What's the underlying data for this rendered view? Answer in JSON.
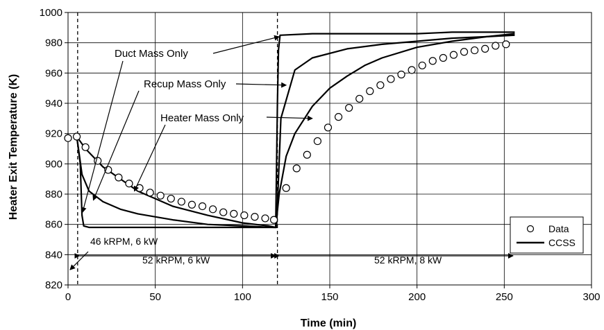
{
  "chart_data": {
    "type": "scatter",
    "title": "",
    "xlabel": "Time (min)",
    "ylabel": "Heater Exit Temperature (K)",
    "xlim": [
      0,
      300
    ],
    "ylim": [
      820,
      1000
    ],
    "xticks": [
      0,
      50,
      100,
      150,
      200,
      250,
      300
    ],
    "yticks": [
      820,
      840,
      860,
      880,
      900,
      920,
      940,
      960,
      980,
      1000
    ],
    "xtick_labels": [
      "0",
      "50",
      "100",
      "150",
      "200",
      "250",
      "300"
    ],
    "ytick_labels": [
      "820",
      "840",
      "860",
      "880",
      "900",
      "920",
      "940",
      "960",
      "980",
      "1000"
    ],
    "grid": true,
    "legend": {
      "position": "bottom-right",
      "entries": [
        {
          "label": "Data",
          "marker": "circle"
        },
        {
          "label": "CCSS",
          "marker": "line"
        }
      ]
    },
    "series": [
      {
        "name": "Data",
        "type": "scatter",
        "x": [
          0,
          5,
          10,
          17,
          23,
          29,
          35,
          41,
          47,
          53,
          59,
          65,
          71,
          77,
          83,
          89,
          95,
          101,
          107,
          113,
          118,
          125,
          131,
          137,
          143,
          149,
          155,
          161,
          167,
          173,
          179,
          185,
          191,
          197,
          203,
          209,
          215,
          221,
          227,
          233,
          239,
          245,
          251
        ],
        "y": [
          917,
          918,
          911,
          902,
          896,
          891,
          887,
          884,
          881,
          879,
          877,
          875,
          873,
          872,
          870,
          868,
          867,
          866,
          865,
          864,
          863,
          884,
          897,
          906,
          915,
          924,
          931,
          937,
          943,
          948,
          952,
          956,
          959,
          962,
          965,
          968,
          970,
          972,
          974,
          975,
          976,
          978,
          979
        ]
      },
      {
        "name": "CCSS",
        "type": "line",
        "x": [
          5,
          10,
          20,
          40,
          60,
          80,
          100,
          115,
          119,
          121,
          125,
          130,
          140,
          150,
          160,
          170,
          180,
          200,
          220,
          240,
          256
        ],
        "y": [
          918,
          910,
          898,
          882,
          872,
          866,
          861,
          859,
          858,
          880,
          905,
          920,
          938,
          950,
          958,
          965,
          970,
          977,
          981,
          984,
          986
        ]
      },
      {
        "type": "line",
        "x": [
          5,
          8,
          12,
          20,
          30,
          40,
          60,
          80,
          100,
          118,
          119.5,
          122,
          130,
          140,
          160,
          180,
          200,
          220,
          240,
          256
        ],
        "y": [
          918,
          893,
          882,
          875,
          870,
          867,
          863,
          860,
          859,
          858,
          858,
          930,
          962,
          970,
          976,
          979,
          981,
          983,
          984,
          985
        ]
      },
      {
        "type": "line",
        "x": [
          5,
          7,
          8,
          9,
          12,
          20,
          40,
          60,
          80,
          100,
          119,
          120,
          120.6,
          121.5,
          140,
          160,
          180,
          200,
          220,
          240,
          256
        ],
        "y": [
          918,
          900,
          866,
          859,
          858,
          858,
          858,
          858,
          858,
          858,
          858,
          940,
          975,
          985,
          986,
          986,
          986,
          986,
          987,
          987,
          987
        ]
      }
    ],
    "annotations": [
      {
        "text": "Duct Mass Only",
        "arrow_to": [
          121,
          984
        ]
      },
      {
        "text": "Recup Mass Only",
        "arrow_to": [
          125,
          952
        ]
      },
      {
        "text": "Heater Mass Only",
        "arrow_to": [
          140,
          930
        ]
      },
      {
        "text": "46 kRPM, 6 kW"
      },
      {
        "text": "52 kRPM, 6 kW"
      },
      {
        "text": "52 kRPM, 8 kW"
      }
    ]
  }
}
